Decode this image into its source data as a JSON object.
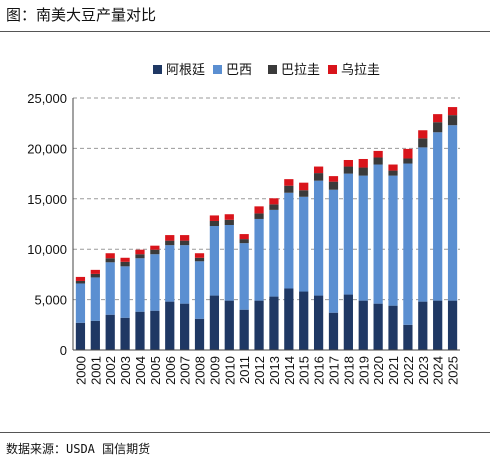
{
  "figure": {
    "title": "图：南美大豆产量对比",
    "source": "数据来源：USDA 国信期货"
  },
  "chart_data": {
    "type": "bar",
    "stacked": true,
    "categories": [
      "2000",
      "2001",
      "2002",
      "2003",
      "2004",
      "2005",
      "2006",
      "2007",
      "2008",
      "2009",
      "2010",
      "2011",
      "2012",
      "2013",
      "2014",
      "2015",
      "2016",
      "2017",
      "2018",
      "2019",
      "2020",
      "2021",
      "2022",
      "2023",
      "2024",
      "2025"
    ],
    "series": [
      {
        "name": "阿根廷",
        "color": "#1f3864",
        "values": [
          2700,
          2900,
          3500,
          3200,
          3800,
          3900,
          4800,
          4600,
          3100,
          5400,
          4900,
          4000,
          4900,
          5300,
          6100,
          5800,
          5400,
          3700,
          5500,
          4900,
          4600,
          4400,
          2500,
          4800,
          4900,
          4900
        ]
      },
      {
        "name": "巴西",
        "color": "#5b8fd1",
        "values": [
          3900,
          4300,
          5200,
          5100,
          5300,
          5600,
          5600,
          5800,
          5700,
          6900,
          7500,
          6600,
          8100,
          8600,
          9500,
          9400,
          11400,
          12200,
          12000,
          12400,
          13800,
          12900,
          16000,
          15300,
          16700,
          17400
        ]
      },
      {
        "name": "巴拉圭",
        "color": "#3a3a3a",
        "values": [
          250,
          350,
          400,
          450,
          400,
          450,
          450,
          450,
          350,
          500,
          520,
          400,
          550,
          550,
          700,
          650,
          750,
          800,
          700,
          800,
          700,
          500,
          500,
          900,
          1000,
          1000
        ]
      },
      {
        "name": "乌拉圭",
        "color": "#d9141b",
        "values": [
          400,
          400,
          500,
          400,
          450,
          400,
          550,
          550,
          450,
          550,
          550,
          500,
          700,
          600,
          650,
          750,
          650,
          550,
          650,
          850,
          650,
          600,
          950,
          800,
          800,
          800
        ]
      }
    ],
    "ylim": [
      0,
      25000
    ],
    "yticks": [
      "0",
      "5,000",
      "10,000",
      "15,000",
      "20,000",
      "25,000"
    ],
    "grid": true,
    "legend": "top"
  }
}
